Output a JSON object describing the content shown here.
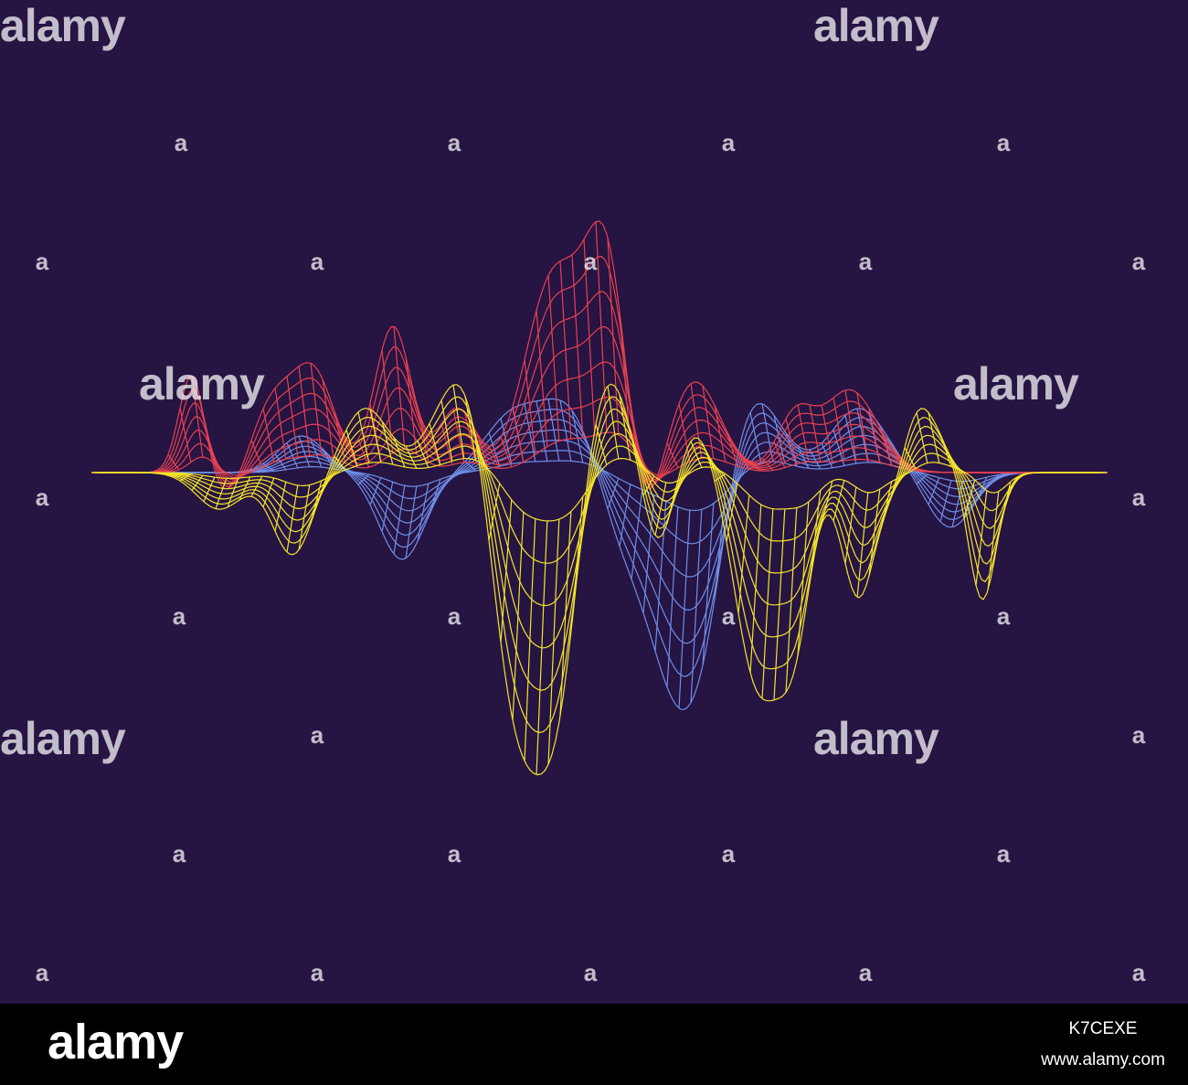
{
  "watermark": "alamy",
  "watermark_mark": "a",
  "footer": {
    "brand": "alamy",
    "image_id": "K7CEXE",
    "url": "www.alamy.com"
  }
}
